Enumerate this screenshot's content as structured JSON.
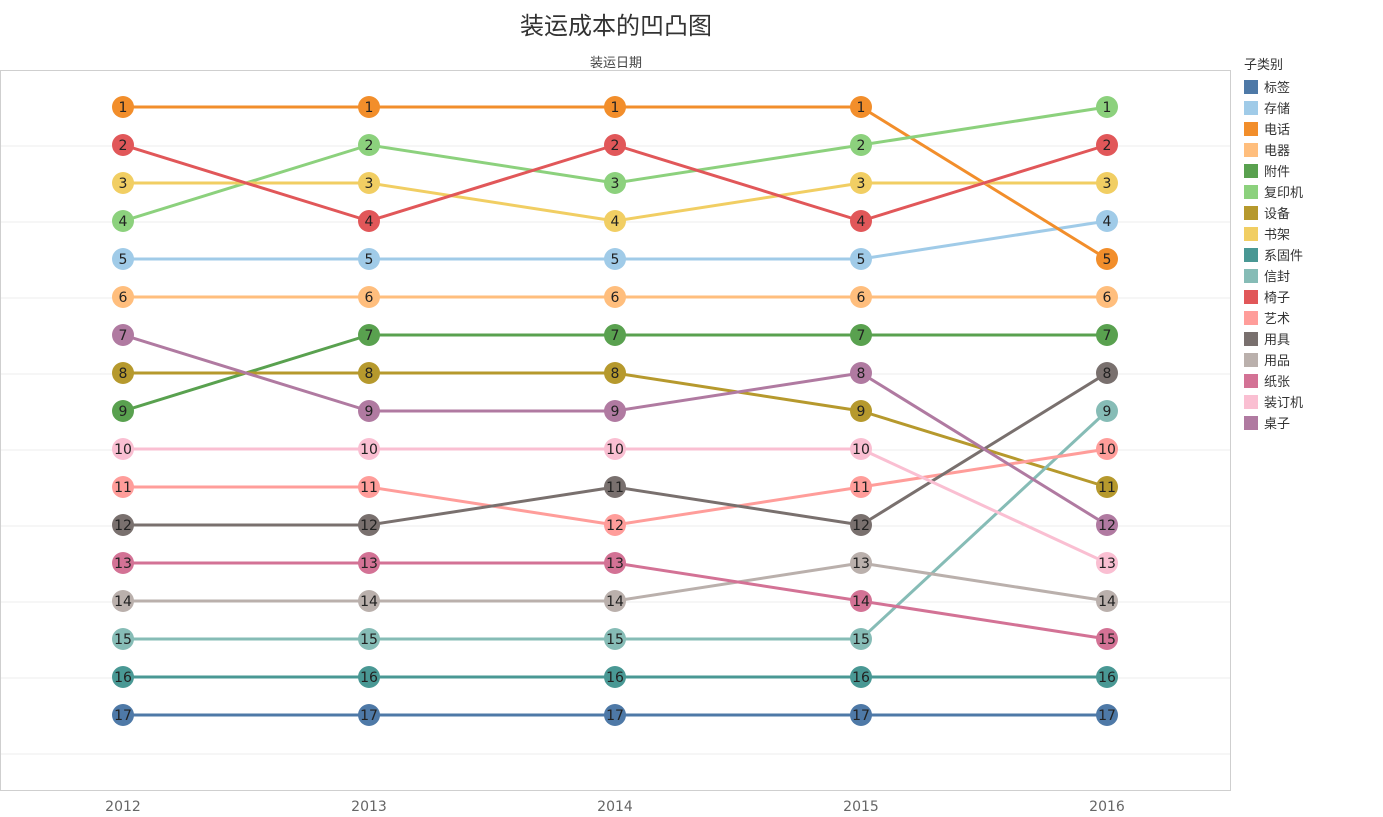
{
  "chart_data": {
    "type": "line",
    "title": "装运成本的凹凸图",
    "subtitle": "装运日期",
    "x": [
      "2012",
      "2013",
      "2014",
      "2015",
      "2016"
    ],
    "ylim": [
      1,
      17
    ],
    "y_reversed": true,
    "grid": true,
    "legend_title": "子类别",
    "legend_position": "right",
    "series": [
      {
        "name": "标签",
        "color": "#4e79a7",
        "values": [
          17,
          17,
          17,
          17,
          17
        ]
      },
      {
        "name": "存储",
        "color": "#a0cbe8",
        "values": [
          5,
          5,
          5,
          5,
          4
        ]
      },
      {
        "name": "电话",
        "color": "#f28e2b",
        "values": [
          1,
          1,
          1,
          1,
          5
        ]
      },
      {
        "name": "电器",
        "color": "#ffbe7d",
        "values": [
          6,
          6,
          6,
          6,
          6
        ]
      },
      {
        "name": "附件",
        "color": "#59a14f",
        "values": [
          9,
          7,
          7,
          7,
          7
        ]
      },
      {
        "name": "复印机",
        "color": "#8cd17d",
        "values": [
          4,
          2,
          3,
          2,
          1
        ]
      },
      {
        "name": "设备",
        "color": "#b6992d",
        "values": [
          8,
          8,
          8,
          9,
          11
        ]
      },
      {
        "name": "书架",
        "color": "#f1ce63",
        "values": [
          3,
          3,
          4,
          3,
          3
        ]
      },
      {
        "name": "系固件",
        "color": "#499894",
        "values": [
          16,
          16,
          16,
          16,
          16
        ]
      },
      {
        "name": "信封",
        "color": "#86bcb6",
        "values": [
          15,
          15,
          15,
          15,
          9
        ]
      },
      {
        "name": "椅子",
        "color": "#e15759",
        "values": [
          2,
          4,
          2,
          4,
          2
        ]
      },
      {
        "name": "艺术",
        "color": "#ff9d9a",
        "values": [
          11,
          11,
          12,
          11,
          10
        ]
      },
      {
        "name": "用具",
        "color": "#79706e",
        "values": [
          12,
          12,
          11,
          12,
          8
        ]
      },
      {
        "name": "用品",
        "color": "#bab0ac",
        "values": [
          14,
          14,
          14,
          13,
          14
        ]
      },
      {
        "name": "纸张",
        "color": "#d37295",
        "values": [
          13,
          13,
          13,
          14,
          15
        ]
      },
      {
        "name": "装订机",
        "color": "#fabfd2",
        "values": [
          10,
          10,
          10,
          10,
          13
        ]
      },
      {
        "name": "桌子",
        "color": "#b07aa1",
        "values": [
          7,
          9,
          9,
          8,
          12
        ]
      }
    ]
  }
}
